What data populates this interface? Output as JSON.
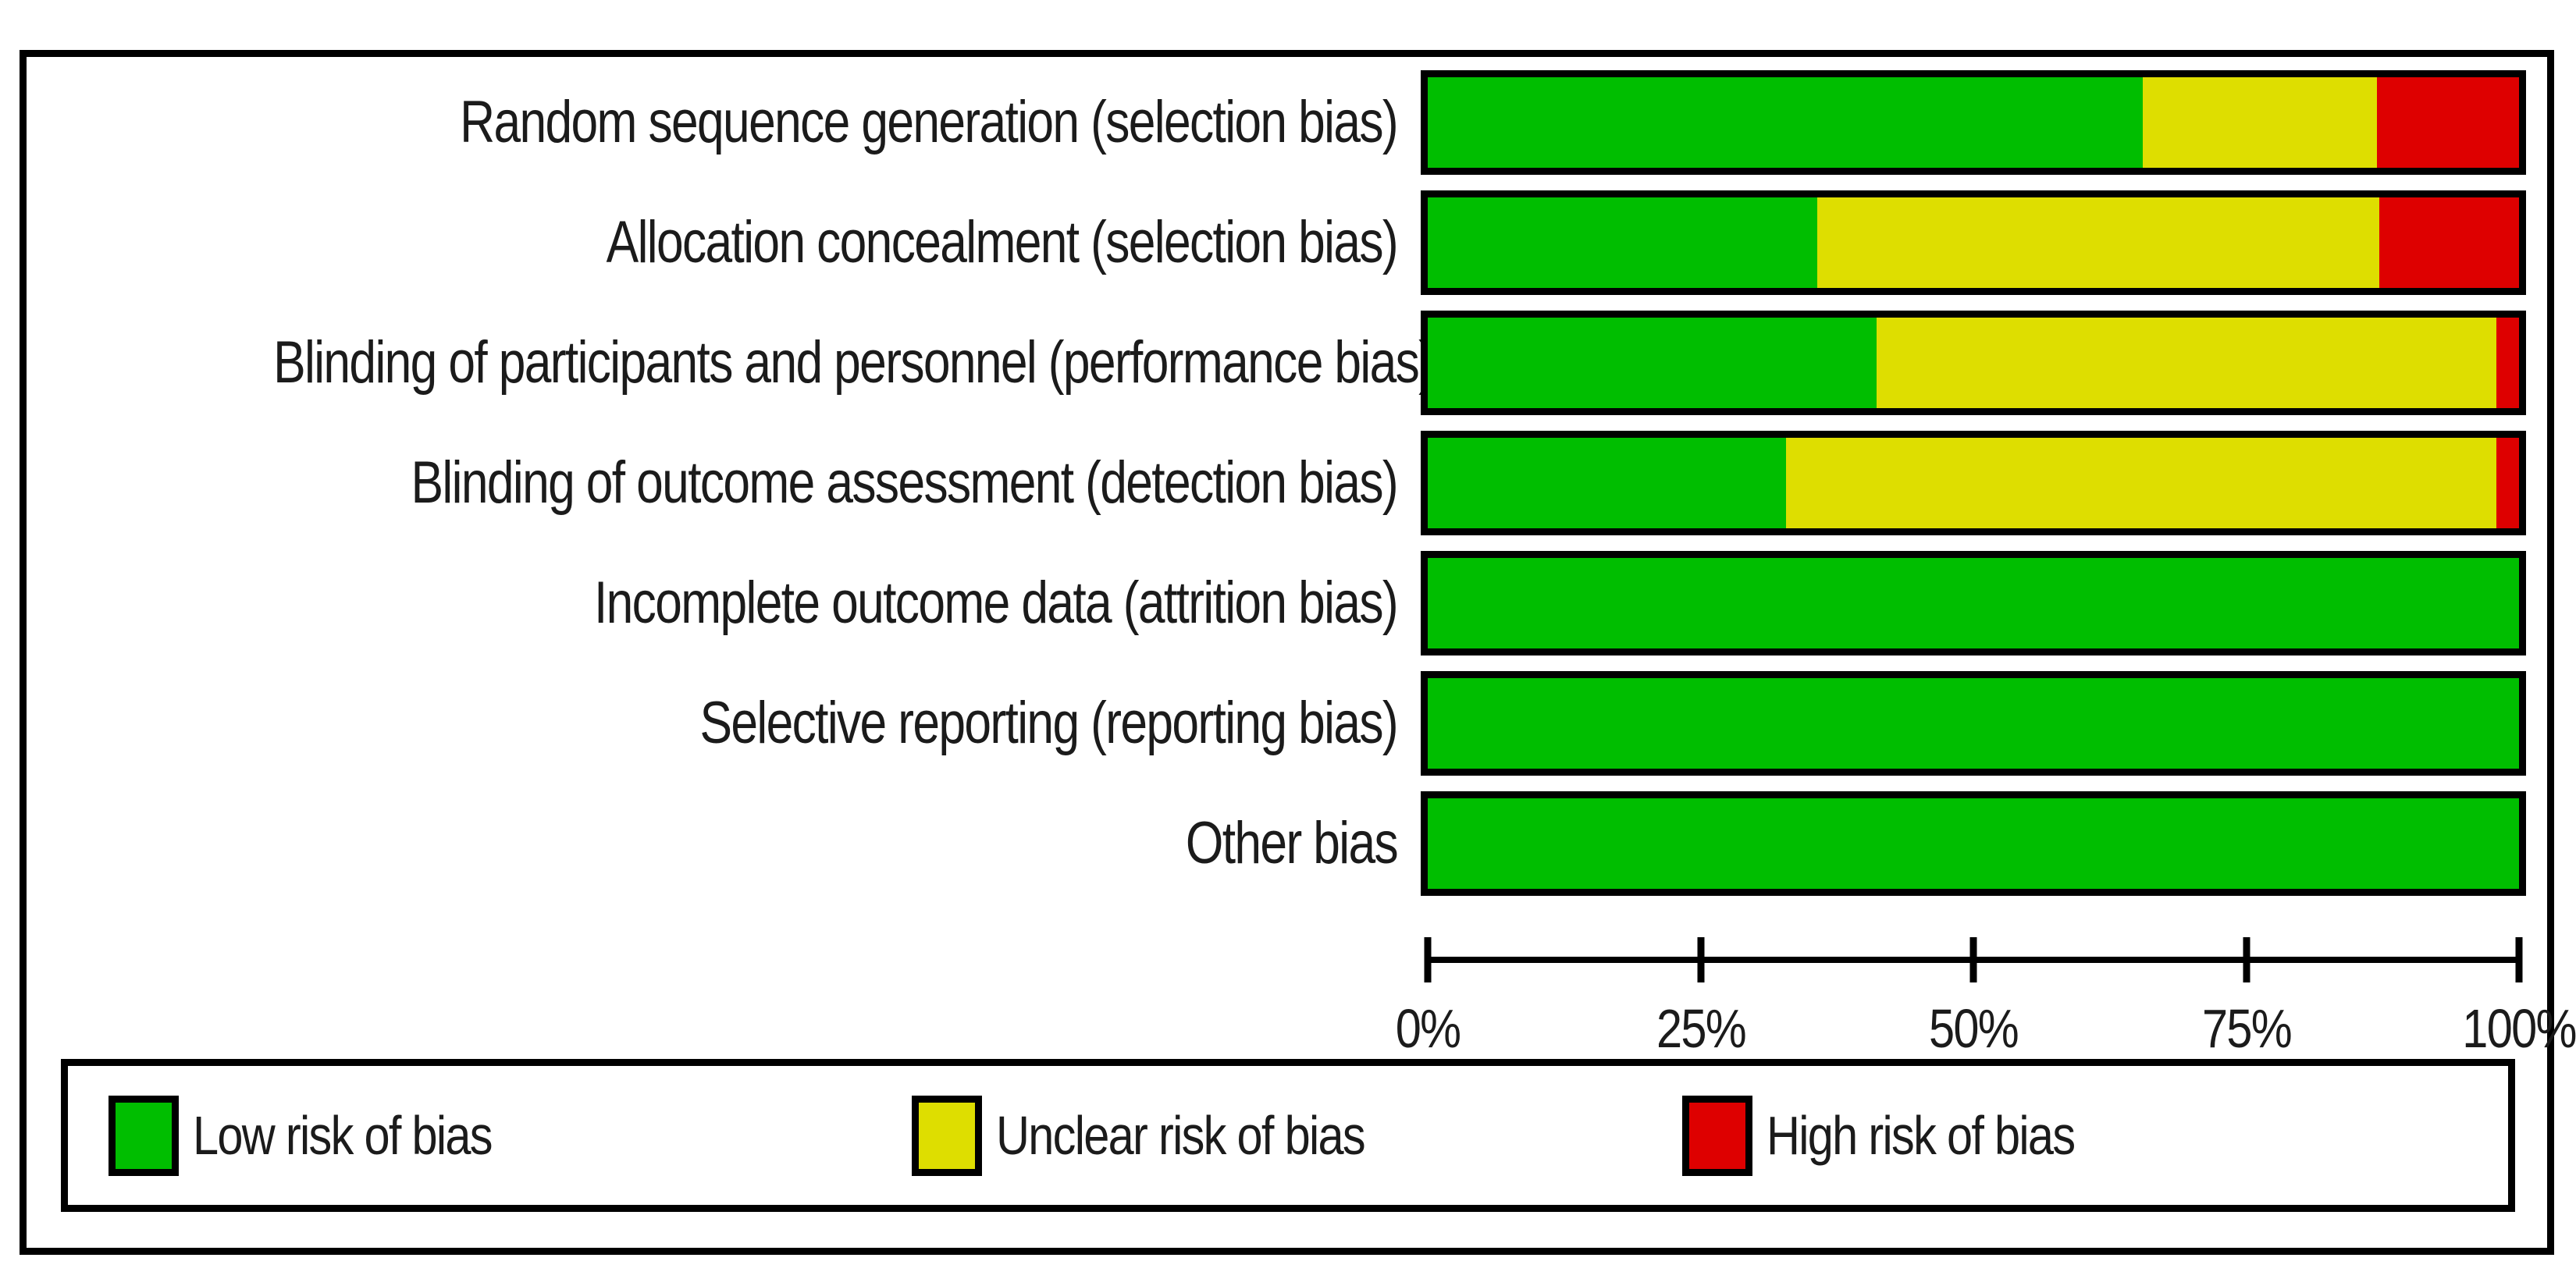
{
  "figure": {
    "kind": "Cochrane risk of bias graph",
    "background": "#ffffff",
    "border_color": "#000000",
    "text_color": "#1b1b1b"
  },
  "chart_data": {
    "type": "bar",
    "orientation": "horizontal-stacked",
    "title": "",
    "xlabel": "",
    "ylabel": "",
    "xlim": [
      0,
      100
    ],
    "grid": false,
    "legend_position": "bottom",
    "x_ticks": [
      "0%",
      "25%",
      "50%",
      "75%",
      "100%"
    ],
    "categories": [
      "Random sequence generation (selection bias)",
      "Allocation concealment (selection bias)",
      "Blinding of participants and personnel (performance bias)",
      "Blinding of outcome assessment (detection bias)",
      "Incomplete outcome data (attrition bias)",
      "Selective reporting (reporting bias)",
      "Other bias"
    ],
    "series": [
      {
        "name": "Low risk of bias",
        "key": "low",
        "color": "#00BE00",
        "values": [
          65.5,
          35.7,
          41.1,
          32.8,
          100,
          100,
          100
        ]
      },
      {
        "name": "Unclear risk of bias",
        "key": "unclear",
        "color": "#DEDE00",
        "values": [
          21.5,
          51.5,
          56.8,
          65.1,
          0,
          0,
          0
        ]
      },
      {
        "name": "High risk of bias",
        "key": "high",
        "color": "#DE0000",
        "values": [
          13.0,
          12.8,
          2.1,
          2.1,
          0,
          0,
          0
        ]
      }
    ]
  }
}
